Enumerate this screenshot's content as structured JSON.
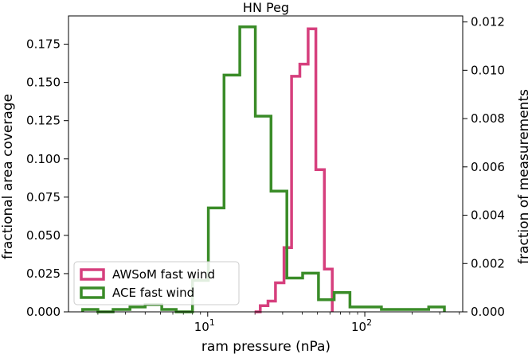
{
  "chart_data": {
    "type": "histogram-step",
    "title": "HN Peg",
    "xlabel": "ram pressure (nPa)",
    "ylabel_left": "fractional area coverage",
    "ylabel_right": "fraction of measurements",
    "xscale": "log",
    "xlim": [
      1.3,
      420
    ],
    "ylim_left": [
      0,
      0.1935
    ],
    "ylim_right": [
      0,
      0.01225
    ],
    "x_ticks": [
      {
        "value": 10,
        "base": "10",
        "exp": "1"
      },
      {
        "value": 100,
        "base": "10",
        "exp": "2"
      }
    ],
    "y_ticks_left": [
      "0.000",
      "0.025",
      "0.050",
      "0.075",
      "0.100",
      "0.125",
      "0.150",
      "0.175"
    ],
    "y_ticks_left_values": [
      0,
      0.025,
      0.05,
      0.075,
      0.1,
      0.125,
      0.15,
      0.175
    ],
    "y_ticks_right": [
      "0.000",
      "0.002",
      "0.004",
      "0.006",
      "0.008",
      "0.010",
      "0.012"
    ],
    "y_ticks_right_values": [
      0,
      0.002,
      0.004,
      0.006,
      0.008,
      0.01,
      0.012
    ],
    "legend_position": "lower-left",
    "series": [
      {
        "name": "AWSoM fast wind",
        "axis": "left",
        "color": "#d63f7d",
        "edges": [
          19.9,
          21.6,
          24.2,
          27.0,
          30.6,
          34.2,
          38.6,
          43.6,
          48.8,
          55.3,
          62.1
        ],
        "values": [
          0.0,
          0.004,
          0.007,
          0.019,
          0.042,
          0.154,
          0.162,
          0.185,
          0.093,
          0.028
        ]
      },
      {
        "name": "ACE fast wind",
        "axis": "right",
        "color": "#3a8c28",
        "edges": [
          1.6,
          2.0,
          2.5,
          3.2,
          4.0,
          5.1,
          6.3,
          8.0,
          10.1,
          12.7,
          16.0,
          20.1,
          25.3,
          31.9,
          40.2,
          50.7,
          63.8,
          80.4,
          101.3,
          127.6,
          160.7,
          202.4,
          255.0,
          321.1
        ],
        "values": [
          0.0001,
          0.0,
          0.0001,
          0.0002,
          0.0003,
          0.0001,
          0.0,
          0.0013,
          0.0043,
          0.0098,
          0.0118,
          0.0081,
          0.005,
          0.0014,
          0.0016,
          0.0005,
          0.0008,
          0.0002,
          0.0002,
          0.0001,
          0.0001,
          0.0001,
          0.0002
        ]
      }
    ]
  }
}
